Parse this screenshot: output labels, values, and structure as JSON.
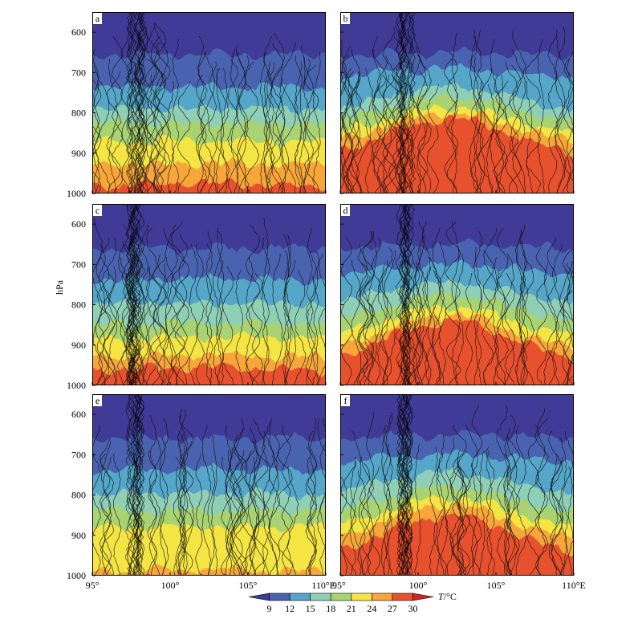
{
  "chart_data": {
    "type": "heatmap",
    "y_axis_label": "hPa",
    "y_ticks": [
      600,
      700,
      800,
      900,
      1000
    ],
    "y_range": [
      550,
      1000
    ],
    "x_range": [
      95,
      110
    ],
    "x_tick_labels_left": [
      "95°",
      "100°",
      "105°",
      "110°E"
    ],
    "x_tick_labels_right": [
      "95°",
      "100°",
      "105°",
      "110°E"
    ],
    "x_tick_values": [
      95,
      100,
      105,
      110
    ],
    "colorbar": {
      "label_italic": "T",
      "label_rest": "/°C",
      "levels": [
        9,
        12,
        15,
        18,
        21,
        24,
        27,
        30
      ],
      "colors": [
        "#3f3b97",
        "#4a63b0",
        "#55a6c9",
        "#8fcfb6",
        "#a9d372",
        "#f4e545",
        "#f7a73a",
        "#e8512e",
        "#d2251f"
      ]
    },
    "panels": [
      {
        "label": "a",
        "ridge_lon": 102.5,
        "isotherms": [
          {
            "t": 12,
            "edge": 655,
            "center": 655
          },
          {
            "t": 15,
            "edge": 735,
            "center": 735
          },
          {
            "t": 18,
            "edge": 790,
            "center": 790
          },
          {
            "t": 21,
            "edge": 825,
            "center": 825
          },
          {
            "t": 24,
            "edge": 870,
            "center": 870
          },
          {
            "t": 27,
            "edge": 930,
            "center": 925
          },
          {
            "t": 30,
            "edge": 985,
            "center": 975
          }
        ]
      },
      {
        "label": "b",
        "ridge_lon": 102.0,
        "isotherms": [
          {
            "t": 12,
            "edge": 660,
            "center": 650
          },
          {
            "t": 15,
            "edge": 715,
            "center": 690
          },
          {
            "t": 18,
            "edge": 800,
            "center": 735
          },
          {
            "t": 21,
            "edge": 830,
            "center": 760
          },
          {
            "t": 24,
            "edge": 860,
            "center": 785
          },
          {
            "t": 27,
            "edge": 880,
            "center": 800
          },
          {
            "t": 30,
            "edge": 910,
            "center": 815
          }
        ]
      },
      {
        "label": "c",
        "ridge_lon": 102.5,
        "isotherms": [
          {
            "t": 12,
            "edge": 660,
            "center": 660
          },
          {
            "t": 15,
            "edge": 740,
            "center": 735
          },
          {
            "t": 18,
            "edge": 800,
            "center": 795
          },
          {
            "t": 21,
            "edge": 850,
            "center": 845
          },
          {
            "t": 24,
            "edge": 885,
            "center": 880
          },
          {
            "t": 27,
            "edge": 930,
            "center": 925
          },
          {
            "t": 30,
            "edge": 965,
            "center": 955
          }
        ]
      },
      {
        "label": "d",
        "ridge_lon": 102.0,
        "isotherms": [
          {
            "t": 12,
            "edge": 660,
            "center": 650
          },
          {
            "t": 15,
            "edge": 725,
            "center": 700
          },
          {
            "t": 18,
            "edge": 800,
            "center": 745
          },
          {
            "t": 21,
            "edge": 850,
            "center": 775
          },
          {
            "t": 24,
            "edge": 885,
            "center": 805
          },
          {
            "t": 27,
            "edge": 920,
            "center": 825
          },
          {
            "t": 30,
            "edge": 945,
            "center": 840
          }
        ]
      },
      {
        "label": "e",
        "ridge_lon": 102.5,
        "isotherms": [
          {
            "t": 12,
            "edge": 655,
            "center": 660
          },
          {
            "t": 15,
            "edge": 740,
            "center": 735
          },
          {
            "t": 18,
            "edge": 800,
            "center": 795
          },
          {
            "t": 21,
            "edge": 840,
            "center": 840
          },
          {
            "t": 24,
            "edge": 880,
            "center": 880
          },
          {
            "t": 27,
            "edge": 990,
            "center": 985
          },
          {
            "t": 30,
            "edge": 1010,
            "center": 1005
          }
        ]
      },
      {
        "label": "f",
        "ridge_lon": 102.0,
        "isotherms": [
          {
            "t": 12,
            "edge": 660,
            "center": 650
          },
          {
            "t": 15,
            "edge": 720,
            "center": 700
          },
          {
            "t": 18,
            "edge": 800,
            "center": 745
          },
          {
            "t": 21,
            "edge": 850,
            "center": 780
          },
          {
            "t": 24,
            "edge": 890,
            "center": 805
          },
          {
            "t": 27,
            "edge": 920,
            "center": 825
          },
          {
            "t": 30,
            "edge": 955,
            "center": 850
          }
        ]
      }
    ]
  }
}
